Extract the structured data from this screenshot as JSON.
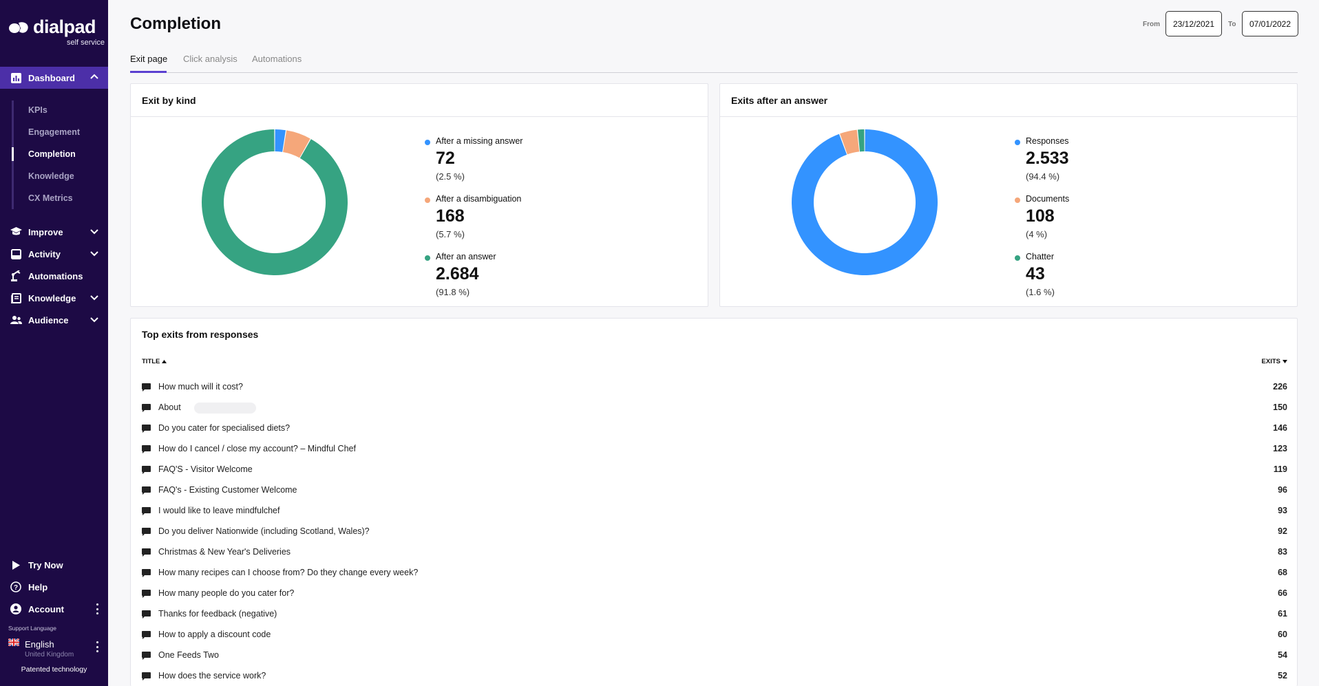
{
  "sidebar": {
    "logo_text": "dialpad",
    "logo_sub": "self service",
    "dashboard_label": "Dashboard",
    "dashboard_subitems": [
      "KPIs",
      "Engagement",
      "Completion",
      "Knowledge",
      "CX Metrics"
    ],
    "selected_subitem": "Completion",
    "menu": [
      {
        "label": "Improve",
        "icon": "graduation-cap-icon",
        "expandable": true
      },
      {
        "label": "Activity",
        "icon": "inbox-icon",
        "expandable": true
      },
      {
        "label": "Automations",
        "icon": "robot-arm-icon",
        "expandable": false
      },
      {
        "label": "Knowledge",
        "icon": "book-icon",
        "expandable": true
      },
      {
        "label": "Audience",
        "icon": "users-icon",
        "expandable": true
      }
    ],
    "bottom": {
      "try_now": "Try Now",
      "help": "Help",
      "account": "Account",
      "support_language_label": "Support Language",
      "language": "English",
      "region": "United Kingdom",
      "patent": "Patented technology"
    }
  },
  "header": {
    "title": "Completion",
    "from_label": "From",
    "from_date": "23/12/2021",
    "to_label": "To",
    "to_date": "07/01/2022"
  },
  "tabs": [
    {
      "label": "Exit page",
      "active": true
    },
    {
      "label": "Click analysis",
      "active": false
    },
    {
      "label": "Automations",
      "active": false
    }
  ],
  "exit_by_kind": {
    "title": "Exit by kind",
    "items": [
      {
        "label": "After a missing answer",
        "value": "72",
        "pct": "(2.5 %)",
        "fraction": 0.025,
        "color": "#3393ff"
      },
      {
        "label": "After a disambiguation",
        "value": "168",
        "pct": "(5.7 %)",
        "fraction": 0.057,
        "color": "#f5a77a"
      },
      {
        "label": "After an answer",
        "value": "2.684",
        "pct": "(91.8 %)",
        "fraction": 0.918,
        "color": "#36a382"
      }
    ]
  },
  "exits_after_answer": {
    "title": "Exits after an answer",
    "items": [
      {
        "label": "Responses",
        "value": "2.533",
        "pct": "(94.4 %)",
        "fraction": 0.944,
        "color": "#3393ff"
      },
      {
        "label": "Documents",
        "value": "108",
        "pct": "(4 %)",
        "fraction": 0.04,
        "color": "#f5a77a"
      },
      {
        "label": "Chatter",
        "value": "43",
        "pct": "(1.6 %)",
        "fraction": 0.016,
        "color": "#36a382"
      }
    ]
  },
  "top_exits": {
    "title": "Top exits from responses",
    "col_title": "TITLE",
    "col_exits": "EXITS",
    "rows": [
      {
        "title": "How much will it cost?",
        "exits": "226"
      },
      {
        "title": "About",
        "exits": "150"
      },
      {
        "title": "Do you cater for specialised diets?",
        "exits": "146"
      },
      {
        "title": "How do I cancel / close my account? – Mindful Chef",
        "exits": "123"
      },
      {
        "title": "FAQ'S - Visitor Welcome",
        "exits": "119"
      },
      {
        "title": "FAQ's - Existing Customer Welcome",
        "exits": "96"
      },
      {
        "title": "I would like to leave mindfulchef",
        "exits": "93"
      },
      {
        "title": "Do you deliver Nationwide (including Scotland, Wales)?",
        "exits": "92"
      },
      {
        "title": "Christmas & New Year's Deliveries",
        "exits": "83"
      },
      {
        "title": "How many recipes can I choose from? Do they change every week?",
        "exits": "68"
      },
      {
        "title": "How many people do you cater for?",
        "exits": "66"
      },
      {
        "title": "Thanks for feedback (negative)",
        "exits": "61"
      },
      {
        "title": "How to apply a discount code",
        "exits": "60"
      },
      {
        "title": "One Feeds Two",
        "exits": "54"
      },
      {
        "title": "How does the service work?",
        "exits": "52"
      }
    ]
  }
}
